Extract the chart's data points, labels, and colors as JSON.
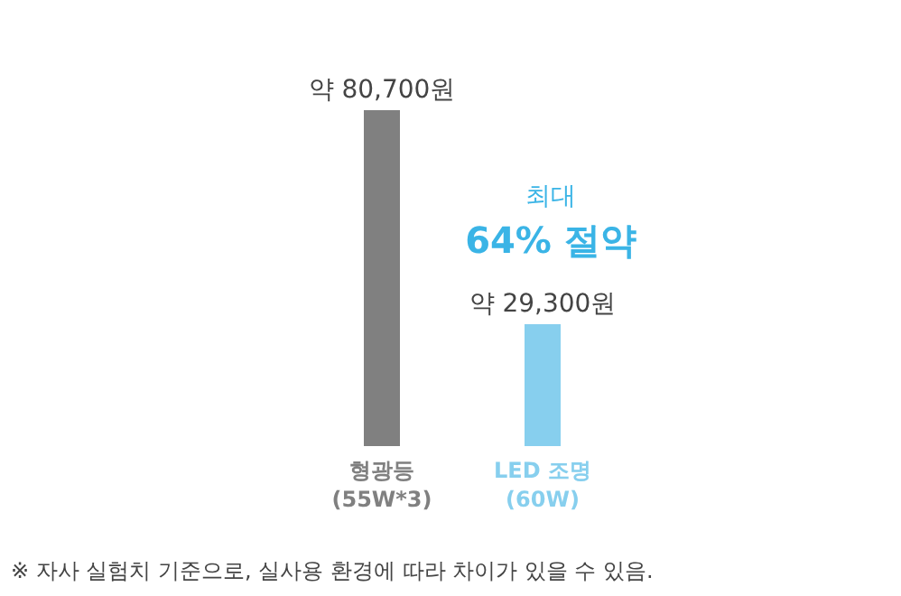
{
  "chart_data": {
    "type": "bar",
    "categories": [
      "형광등 (55W*3)",
      "LED 조명 (60W)"
    ],
    "values": [
      80700,
      29300
    ],
    "colors": [
      "#808080",
      "#87cfee"
    ],
    "value_labels": [
      "약 80,700원",
      "약 29,300원"
    ],
    "tick_labels": "x",
    "annotations": [
      "최대",
      "64% 절약",
      "※ 자사 실험치 기준으로, 실사용 환경에 따라 차이가 있을 수 있음."
    ]
  }
}
